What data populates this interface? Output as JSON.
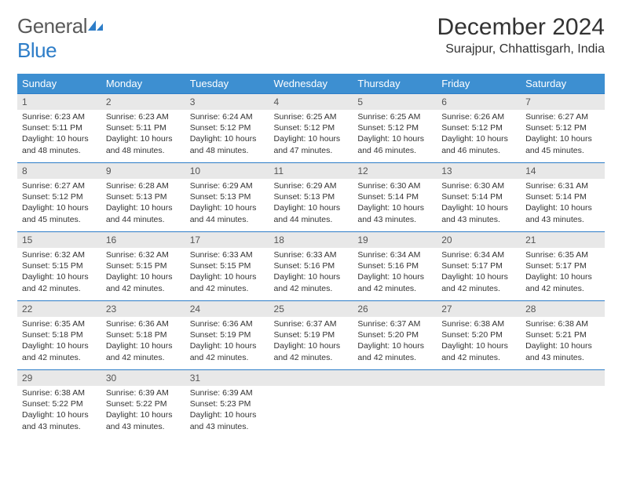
{
  "logo": {
    "text1": "General",
    "text2": "Blue"
  },
  "title": "December 2024",
  "location": "Surajpur, Chhattisgarh, India",
  "day_headers": [
    "Sunday",
    "Monday",
    "Tuesday",
    "Wednesday",
    "Thursday",
    "Friday",
    "Saturday"
  ],
  "colors": {
    "header_bg": "#3d8fd1",
    "border": "#2d7dc8",
    "daynum_bg": "#e8e8e8",
    "logo_blue": "#2d7dc8"
  },
  "weeks": [
    [
      {
        "n": "1",
        "sr": "Sunrise: 6:23 AM",
        "ss": "Sunset: 5:11 PM",
        "dl": "Daylight: 10 hours and 48 minutes."
      },
      {
        "n": "2",
        "sr": "Sunrise: 6:23 AM",
        "ss": "Sunset: 5:11 PM",
        "dl": "Daylight: 10 hours and 48 minutes."
      },
      {
        "n": "3",
        "sr": "Sunrise: 6:24 AM",
        "ss": "Sunset: 5:12 PM",
        "dl": "Daylight: 10 hours and 48 minutes."
      },
      {
        "n": "4",
        "sr": "Sunrise: 6:25 AM",
        "ss": "Sunset: 5:12 PM",
        "dl": "Daylight: 10 hours and 47 minutes."
      },
      {
        "n": "5",
        "sr": "Sunrise: 6:25 AM",
        "ss": "Sunset: 5:12 PM",
        "dl": "Daylight: 10 hours and 46 minutes."
      },
      {
        "n": "6",
        "sr": "Sunrise: 6:26 AM",
        "ss": "Sunset: 5:12 PM",
        "dl": "Daylight: 10 hours and 46 minutes."
      },
      {
        "n": "7",
        "sr": "Sunrise: 6:27 AM",
        "ss": "Sunset: 5:12 PM",
        "dl": "Daylight: 10 hours and 45 minutes."
      }
    ],
    [
      {
        "n": "8",
        "sr": "Sunrise: 6:27 AM",
        "ss": "Sunset: 5:12 PM",
        "dl": "Daylight: 10 hours and 45 minutes."
      },
      {
        "n": "9",
        "sr": "Sunrise: 6:28 AM",
        "ss": "Sunset: 5:13 PM",
        "dl": "Daylight: 10 hours and 44 minutes."
      },
      {
        "n": "10",
        "sr": "Sunrise: 6:29 AM",
        "ss": "Sunset: 5:13 PM",
        "dl": "Daylight: 10 hours and 44 minutes."
      },
      {
        "n": "11",
        "sr": "Sunrise: 6:29 AM",
        "ss": "Sunset: 5:13 PM",
        "dl": "Daylight: 10 hours and 44 minutes."
      },
      {
        "n": "12",
        "sr": "Sunrise: 6:30 AM",
        "ss": "Sunset: 5:14 PM",
        "dl": "Daylight: 10 hours and 43 minutes."
      },
      {
        "n": "13",
        "sr": "Sunrise: 6:30 AM",
        "ss": "Sunset: 5:14 PM",
        "dl": "Daylight: 10 hours and 43 minutes."
      },
      {
        "n": "14",
        "sr": "Sunrise: 6:31 AM",
        "ss": "Sunset: 5:14 PM",
        "dl": "Daylight: 10 hours and 43 minutes."
      }
    ],
    [
      {
        "n": "15",
        "sr": "Sunrise: 6:32 AM",
        "ss": "Sunset: 5:15 PM",
        "dl": "Daylight: 10 hours and 42 minutes."
      },
      {
        "n": "16",
        "sr": "Sunrise: 6:32 AM",
        "ss": "Sunset: 5:15 PM",
        "dl": "Daylight: 10 hours and 42 minutes."
      },
      {
        "n": "17",
        "sr": "Sunrise: 6:33 AM",
        "ss": "Sunset: 5:15 PM",
        "dl": "Daylight: 10 hours and 42 minutes."
      },
      {
        "n": "18",
        "sr": "Sunrise: 6:33 AM",
        "ss": "Sunset: 5:16 PM",
        "dl": "Daylight: 10 hours and 42 minutes."
      },
      {
        "n": "19",
        "sr": "Sunrise: 6:34 AM",
        "ss": "Sunset: 5:16 PM",
        "dl": "Daylight: 10 hours and 42 minutes."
      },
      {
        "n": "20",
        "sr": "Sunrise: 6:34 AM",
        "ss": "Sunset: 5:17 PM",
        "dl": "Daylight: 10 hours and 42 minutes."
      },
      {
        "n": "21",
        "sr": "Sunrise: 6:35 AM",
        "ss": "Sunset: 5:17 PM",
        "dl": "Daylight: 10 hours and 42 minutes."
      }
    ],
    [
      {
        "n": "22",
        "sr": "Sunrise: 6:35 AM",
        "ss": "Sunset: 5:18 PM",
        "dl": "Daylight: 10 hours and 42 minutes."
      },
      {
        "n": "23",
        "sr": "Sunrise: 6:36 AM",
        "ss": "Sunset: 5:18 PM",
        "dl": "Daylight: 10 hours and 42 minutes."
      },
      {
        "n": "24",
        "sr": "Sunrise: 6:36 AM",
        "ss": "Sunset: 5:19 PM",
        "dl": "Daylight: 10 hours and 42 minutes."
      },
      {
        "n": "25",
        "sr": "Sunrise: 6:37 AM",
        "ss": "Sunset: 5:19 PM",
        "dl": "Daylight: 10 hours and 42 minutes."
      },
      {
        "n": "26",
        "sr": "Sunrise: 6:37 AM",
        "ss": "Sunset: 5:20 PM",
        "dl": "Daylight: 10 hours and 42 minutes."
      },
      {
        "n": "27",
        "sr": "Sunrise: 6:38 AM",
        "ss": "Sunset: 5:20 PM",
        "dl": "Daylight: 10 hours and 42 minutes."
      },
      {
        "n": "28",
        "sr": "Sunrise: 6:38 AM",
        "ss": "Sunset: 5:21 PM",
        "dl": "Daylight: 10 hours and 43 minutes."
      }
    ],
    [
      {
        "n": "29",
        "sr": "Sunrise: 6:38 AM",
        "ss": "Sunset: 5:22 PM",
        "dl": "Daylight: 10 hours and 43 minutes."
      },
      {
        "n": "30",
        "sr": "Sunrise: 6:39 AM",
        "ss": "Sunset: 5:22 PM",
        "dl": "Daylight: 10 hours and 43 minutes."
      },
      {
        "n": "31",
        "sr": "Sunrise: 6:39 AM",
        "ss": "Sunset: 5:23 PM",
        "dl": "Daylight: 10 hours and 43 minutes."
      },
      {
        "n": "",
        "sr": "",
        "ss": "",
        "dl": ""
      },
      {
        "n": "",
        "sr": "",
        "ss": "",
        "dl": ""
      },
      {
        "n": "",
        "sr": "",
        "ss": "",
        "dl": ""
      },
      {
        "n": "",
        "sr": "",
        "ss": "",
        "dl": ""
      }
    ]
  ]
}
